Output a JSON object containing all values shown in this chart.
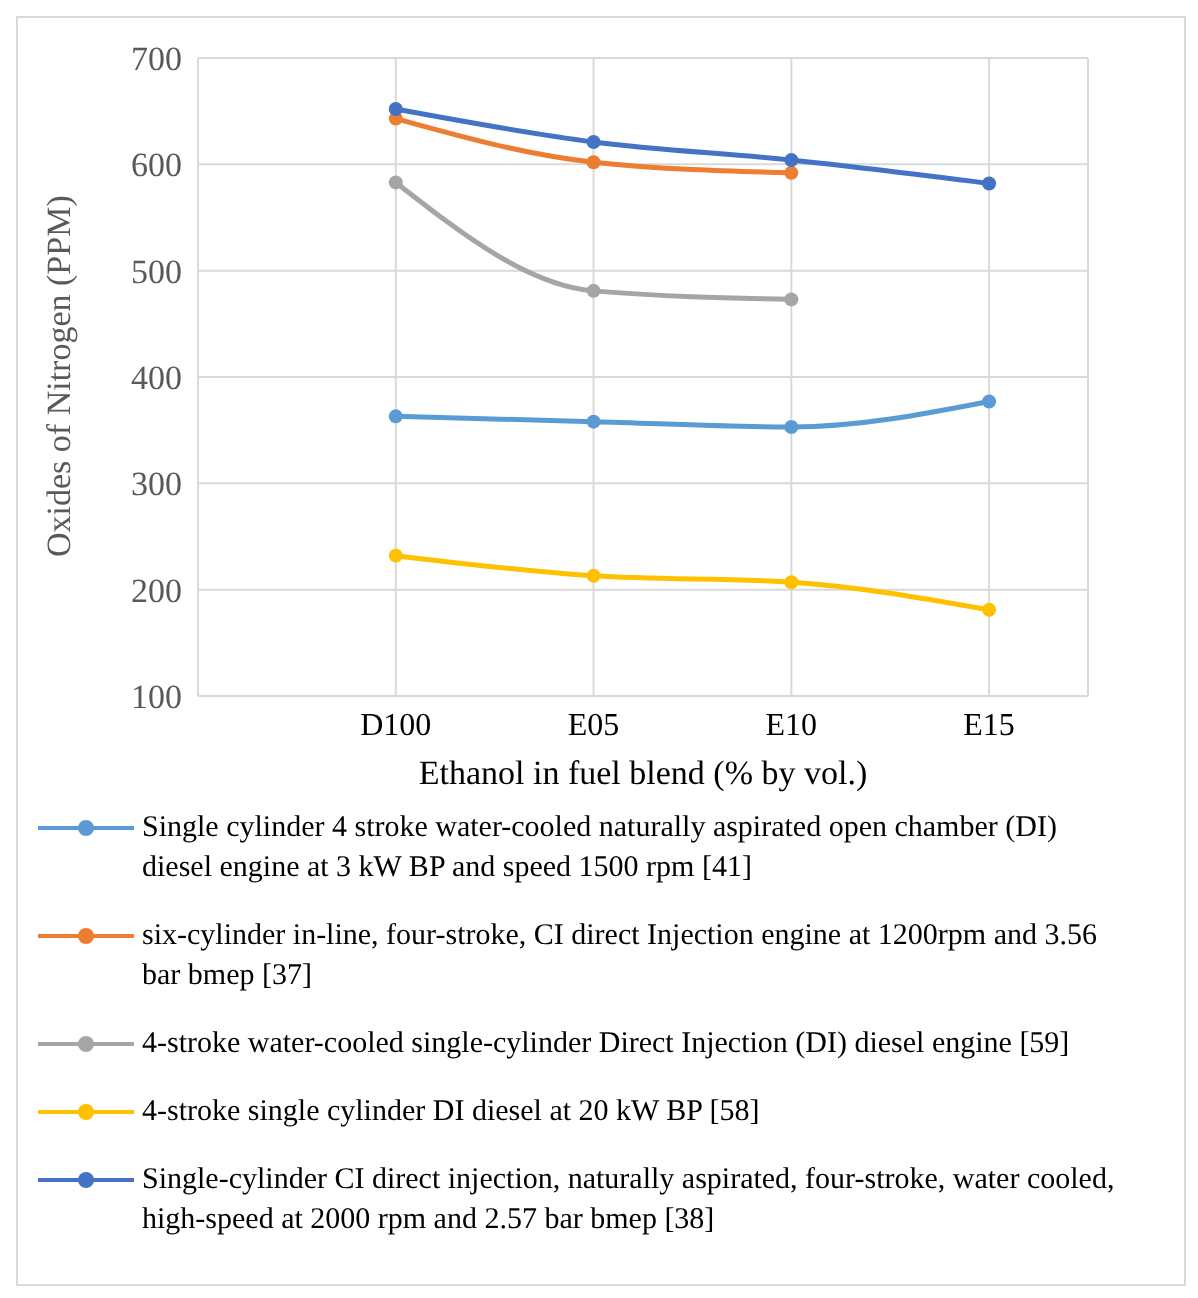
{
  "chart_data": {
    "type": "line",
    "xlabel": "Ethanol in fuel blend (% by vol.)",
    "ylabel": "Oxides of Nitrogen (PPM)",
    "categories": [
      "D100",
      "E05",
      "E10",
      "E15"
    ],
    "series": [
      {
        "name": "Single cylinder 4 stroke water-cooled naturally aspirated open chamber (DI) diesel engine at 3 kW BP and speed 1500 rpm [41]",
        "color": "#5b9bd5",
        "values": [
          363,
          358,
          353,
          377
        ]
      },
      {
        "name": "six-cylinder in-line, four-stroke, CI direct Injection engine at 1200rpm and 3.56 bar bmep [37]",
        "color": "#ed7d31",
        "values": [
          643,
          602,
          592,
          null
        ]
      },
      {
        "name": "4-stroke water-cooled single-cylinder Direct Injection (DI) diesel engine [59]",
        "color": "#a5a5a5",
        "values": [
          583,
          481,
          473,
          null
        ]
      },
      {
        "name": "4-stroke single cylinder DI diesel at 20 kW BP [58]",
        "color": "#ffc000",
        "values": [
          232,
          213,
          207,
          181
        ]
      },
      {
        "name": "Single-cylinder CI direct injection, naturally aspirated, four-stroke, water cooled, high-speed at 2000 rpm and 2.57 bar bmep [38]",
        "color": "#4472c4",
        "values": [
          652,
          621,
          604,
          582
        ]
      }
    ],
    "ylim": [
      100,
      700
    ],
    "yticks": [
      100,
      200,
      300,
      400,
      500,
      600,
      700
    ],
    "grid": true,
    "legend": "bottom",
    "marker": "circle",
    "line_style": "solid"
  }
}
